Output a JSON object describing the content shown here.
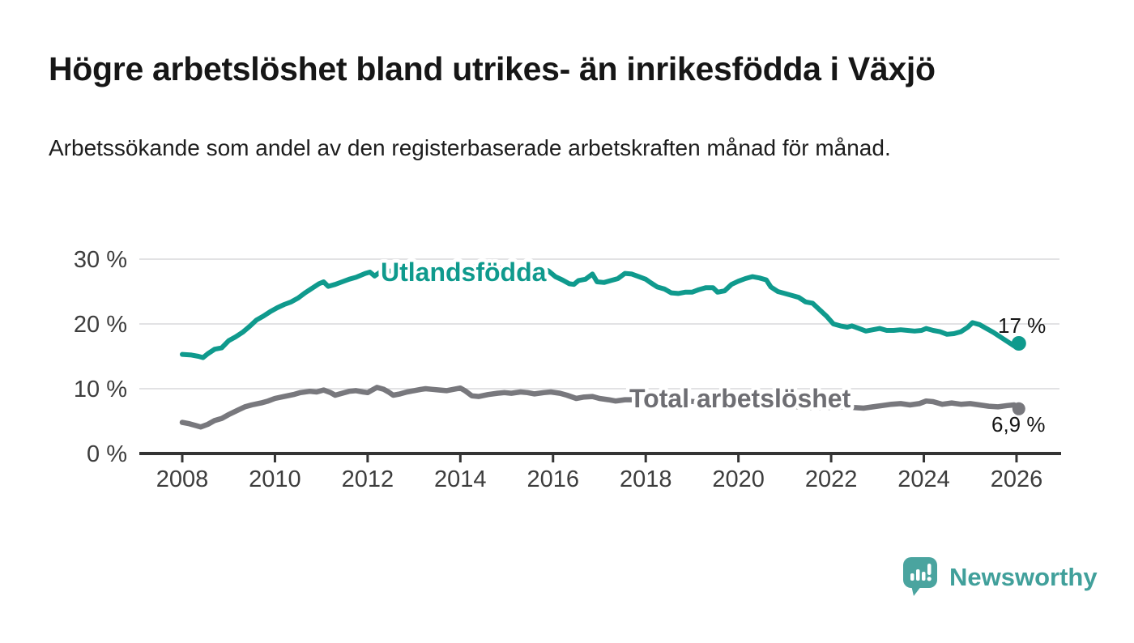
{
  "header": {
    "title": "Högre arbetslöshet bland utrikes- än inrikesfödda i Växjö",
    "subtitle": "Arbetssökande som andel av den registerbaserade arbetskraften månad för månad."
  },
  "chart_data": {
    "type": "line",
    "title": "Högre arbetslöshet bland utrikes- än inrikesfödda i Växjö",
    "subtitle": "Arbetssökande som andel av den registerbaserade arbetskraften månad för månad.",
    "xlabel": "",
    "ylabel": "",
    "xlim": [
      2007.1,
      2027
    ],
    "ylim": [
      0,
      32
    ],
    "grid": "horizontal",
    "legend_position": "inline-labels",
    "x_ticks": [
      {
        "value": 2008,
        "label": "2008"
      },
      {
        "value": 2010,
        "label": "2010"
      },
      {
        "value": 2012,
        "label": "2012"
      },
      {
        "value": 2014,
        "label": "2014"
      },
      {
        "value": 2016,
        "label": "2016"
      },
      {
        "value": 2018,
        "label": "2018"
      },
      {
        "value": 2020,
        "label": "2020"
      },
      {
        "value": 2022,
        "label": "2022"
      },
      {
        "value": 2024,
        "label": "2024"
      },
      {
        "value": 2026,
        "label": "2026"
      }
    ],
    "y_ticks": [
      {
        "value": 0,
        "label": "0 %"
      },
      {
        "value": 10,
        "label": "10 %"
      },
      {
        "value": 20,
        "label": "20 %"
      },
      {
        "value": 30,
        "label": "30 %"
      }
    ],
    "series": [
      {
        "name": "Utlandsfödda",
        "color": "#0f9a8d",
        "label_color": "#0f9a8d",
        "end_label": "17 %",
        "end_value": 17.0,
        "points": [
          [
            2008.0,
            15.3
          ],
          [
            2008.2,
            15.2
          ],
          [
            2008.35,
            15.0
          ],
          [
            2008.45,
            14.8
          ],
          [
            2008.55,
            15.4
          ],
          [
            2008.7,
            16.1
          ],
          [
            2008.85,
            16.3
          ],
          [
            2009.0,
            17.4
          ],
          [
            2009.15,
            18.0
          ],
          [
            2009.3,
            18.7
          ],
          [
            2009.45,
            19.6
          ],
          [
            2009.6,
            20.6
          ],
          [
            2009.75,
            21.2
          ],
          [
            2009.9,
            21.9
          ],
          [
            2010.05,
            22.5
          ],
          [
            2010.2,
            23.0
          ],
          [
            2010.35,
            23.4
          ],
          [
            2010.5,
            24.0
          ],
          [
            2010.65,
            24.8
          ],
          [
            2010.8,
            25.5
          ],
          [
            2010.95,
            26.2
          ],
          [
            2011.05,
            26.5
          ],
          [
            2011.15,
            25.8
          ],
          [
            2011.3,
            26.1
          ],
          [
            2011.45,
            26.5
          ],
          [
            2011.6,
            26.9
          ],
          [
            2011.75,
            27.2
          ],
          [
            2011.95,
            27.8
          ],
          [
            2012.05,
            28.0
          ],
          [
            2012.15,
            27.4
          ],
          [
            2012.25,
            27.9
          ],
          [
            2012.35,
            28.3
          ],
          [
            2012.55,
            28.1
          ],
          [
            2012.75,
            28.4
          ],
          [
            2012.95,
            28.2
          ],
          [
            2013.15,
            28.6
          ],
          [
            2013.35,
            28.4
          ],
          [
            2013.55,
            28.7
          ],
          [
            2013.75,
            28.5
          ],
          [
            2013.95,
            28.8
          ],
          [
            2014.15,
            28.6
          ],
          [
            2014.35,
            28.9
          ],
          [
            2014.55,
            28.7
          ],
          [
            2014.75,
            28.5
          ],
          [
            2014.95,
            28.7
          ],
          [
            2015.15,
            28.5
          ],
          [
            2015.35,
            28.6
          ],
          [
            2015.55,
            28.4
          ],
          [
            2015.75,
            28.5
          ],
          [
            2015.9,
            28.2
          ],
          [
            2016.05,
            27.3
          ],
          [
            2016.2,
            26.8
          ],
          [
            2016.35,
            26.2
          ],
          [
            2016.45,
            26.1
          ],
          [
            2016.55,
            26.7
          ],
          [
            2016.7,
            26.9
          ],
          [
            2016.85,
            27.7
          ],
          [
            2016.95,
            26.5
          ],
          [
            2017.1,
            26.4
          ],
          [
            2017.25,
            26.7
          ],
          [
            2017.4,
            27.0
          ],
          [
            2017.55,
            27.8
          ],
          [
            2017.7,
            27.7
          ],
          [
            2017.85,
            27.3
          ],
          [
            2018.0,
            26.9
          ],
          [
            2018.1,
            26.4
          ],
          [
            2018.25,
            25.7
          ],
          [
            2018.4,
            25.4
          ],
          [
            2018.55,
            24.8
          ],
          [
            2018.7,
            24.7
          ],
          [
            2018.85,
            24.9
          ],
          [
            2019.0,
            24.9
          ],
          [
            2019.15,
            25.3
          ],
          [
            2019.3,
            25.6
          ],
          [
            2019.45,
            25.6
          ],
          [
            2019.55,
            24.9
          ],
          [
            2019.7,
            25.1
          ],
          [
            2019.85,
            26.1
          ],
          [
            2020.0,
            26.6
          ],
          [
            2020.15,
            27.0
          ],
          [
            2020.3,
            27.3
          ],
          [
            2020.45,
            27.1
          ],
          [
            2020.6,
            26.8
          ],
          [
            2020.7,
            25.7
          ],
          [
            2020.85,
            25.0
          ],
          [
            2021.0,
            24.7
          ],
          [
            2021.15,
            24.4
          ],
          [
            2021.3,
            24.1
          ],
          [
            2021.45,
            23.4
          ],
          [
            2021.6,
            23.2
          ],
          [
            2021.75,
            22.2
          ],
          [
            2021.9,
            21.2
          ],
          [
            2022.05,
            20.0
          ],
          [
            2022.2,
            19.7
          ],
          [
            2022.35,
            19.5
          ],
          [
            2022.45,
            19.7
          ],
          [
            2022.6,
            19.3
          ],
          [
            2022.75,
            18.9
          ],
          [
            2022.9,
            19.1
          ],
          [
            2023.05,
            19.3
          ],
          [
            2023.2,
            19.0
          ],
          [
            2023.35,
            19.0
          ],
          [
            2023.5,
            19.1
          ],
          [
            2023.65,
            19.0
          ],
          [
            2023.8,
            18.9
          ],
          [
            2023.95,
            19.0
          ],
          [
            2024.05,
            19.3
          ],
          [
            2024.2,
            19.0
          ],
          [
            2024.35,
            18.8
          ],
          [
            2024.5,
            18.4
          ],
          [
            2024.65,
            18.5
          ],
          [
            2024.8,
            18.8
          ],
          [
            2024.95,
            19.5
          ],
          [
            2025.05,
            20.2
          ],
          [
            2025.2,
            19.9
          ],
          [
            2025.35,
            19.3
          ],
          [
            2025.5,
            18.7
          ],
          [
            2025.65,
            18.0
          ],
          [
            2025.8,
            17.3
          ],
          [
            2025.95,
            16.6
          ],
          [
            2026.05,
            17.0
          ]
        ]
      },
      {
        "name": "Total arbetslöshet",
        "color": "#78787d",
        "label_color": "#6e6e73",
        "end_label": "6,9 %",
        "end_value": 6.9,
        "points": [
          [
            2008.0,
            4.8
          ],
          [
            2008.15,
            4.6
          ],
          [
            2008.3,
            4.3
          ],
          [
            2008.4,
            4.1
          ],
          [
            2008.55,
            4.5
          ],
          [
            2008.7,
            5.1
          ],
          [
            2008.85,
            5.4
          ],
          [
            2009.0,
            6.0
          ],
          [
            2009.2,
            6.7
          ],
          [
            2009.35,
            7.2
          ],
          [
            2009.5,
            7.5
          ],
          [
            2009.7,
            7.8
          ],
          [
            2009.85,
            8.1
          ],
          [
            2010.0,
            8.5
          ],
          [
            2010.2,
            8.8
          ],
          [
            2010.4,
            9.1
          ],
          [
            2010.55,
            9.4
          ],
          [
            2010.75,
            9.6
          ],
          [
            2010.9,
            9.5
          ],
          [
            2011.05,
            9.8
          ],
          [
            2011.2,
            9.4
          ],
          [
            2011.3,
            9.0
          ],
          [
            2011.45,
            9.3
          ],
          [
            2011.6,
            9.6
          ],
          [
            2011.75,
            9.7
          ],
          [
            2011.9,
            9.5
          ],
          [
            2012.0,
            9.4
          ],
          [
            2012.1,
            9.8
          ],
          [
            2012.2,
            10.2
          ],
          [
            2012.35,
            9.9
          ],
          [
            2012.45,
            9.5
          ],
          [
            2012.55,
            9.0
          ],
          [
            2012.7,
            9.2
          ],
          [
            2012.85,
            9.5
          ],
          [
            2013.0,
            9.7
          ],
          [
            2013.15,
            9.9
          ],
          [
            2013.25,
            10.0
          ],
          [
            2013.4,
            9.9
          ],
          [
            2013.55,
            9.8
          ],
          [
            2013.7,
            9.7
          ],
          [
            2013.85,
            9.9
          ],
          [
            2014.0,
            10.1
          ],
          [
            2014.1,
            9.7
          ],
          [
            2014.25,
            8.9
          ],
          [
            2014.4,
            8.8
          ],
          [
            2014.6,
            9.1
          ],
          [
            2014.8,
            9.3
          ],
          [
            2014.95,
            9.4
          ],
          [
            2015.1,
            9.3
          ],
          [
            2015.3,
            9.5
          ],
          [
            2015.45,
            9.4
          ],
          [
            2015.6,
            9.2
          ],
          [
            2015.8,
            9.4
          ],
          [
            2015.95,
            9.5
          ],
          [
            2016.15,
            9.3
          ],
          [
            2016.3,
            9.0
          ],
          [
            2016.5,
            8.5
          ],
          [
            2016.65,
            8.7
          ],
          [
            2016.85,
            8.8
          ],
          [
            2017.0,
            8.5
          ],
          [
            2017.2,
            8.3
          ],
          [
            2017.35,
            8.1
          ],
          [
            2017.55,
            8.3
          ],
          [
            2017.75,
            8.3
          ],
          [
            2018.0,
            8.5
          ],
          [
            2018.3,
            8.4
          ],
          [
            2018.6,
            8.2
          ],
          [
            2018.9,
            8.1
          ],
          [
            2019.2,
            7.9
          ],
          [
            2019.5,
            7.8
          ],
          [
            2019.8,
            8.0
          ],
          [
            2020.1,
            8.4
          ],
          [
            2020.4,
            8.8
          ],
          [
            2020.6,
            8.6
          ],
          [
            2020.8,
            7.8
          ],
          [
            2021.0,
            7.5
          ],
          [
            2021.3,
            7.2
          ],
          [
            2021.6,
            7.1
          ],
          [
            2021.9,
            7.1
          ],
          [
            2022.1,
            7.2
          ],
          [
            2022.35,
            7.2
          ],
          [
            2022.5,
            7.1
          ],
          [
            2022.7,
            7.0
          ],
          [
            2022.9,
            7.2
          ],
          [
            2023.1,
            7.4
          ],
          [
            2023.3,
            7.6
          ],
          [
            2023.5,
            7.7
          ],
          [
            2023.7,
            7.5
          ],
          [
            2023.9,
            7.7
          ],
          [
            2024.05,
            8.1
          ],
          [
            2024.2,
            8.0
          ],
          [
            2024.4,
            7.6
          ],
          [
            2024.6,
            7.8
          ],
          [
            2024.8,
            7.6
          ],
          [
            2025.0,
            7.7
          ],
          [
            2025.2,
            7.5
          ],
          [
            2025.4,
            7.3
          ],
          [
            2025.6,
            7.2
          ],
          [
            2025.8,
            7.4
          ],
          [
            2025.95,
            7.5
          ],
          [
            2026.05,
            6.9
          ]
        ]
      }
    ]
  },
  "branding": {
    "logo_text": "Newsworthy",
    "logo_icon": "bar-chart-speech-bubble-icon",
    "brand_color": "#41a09b"
  }
}
